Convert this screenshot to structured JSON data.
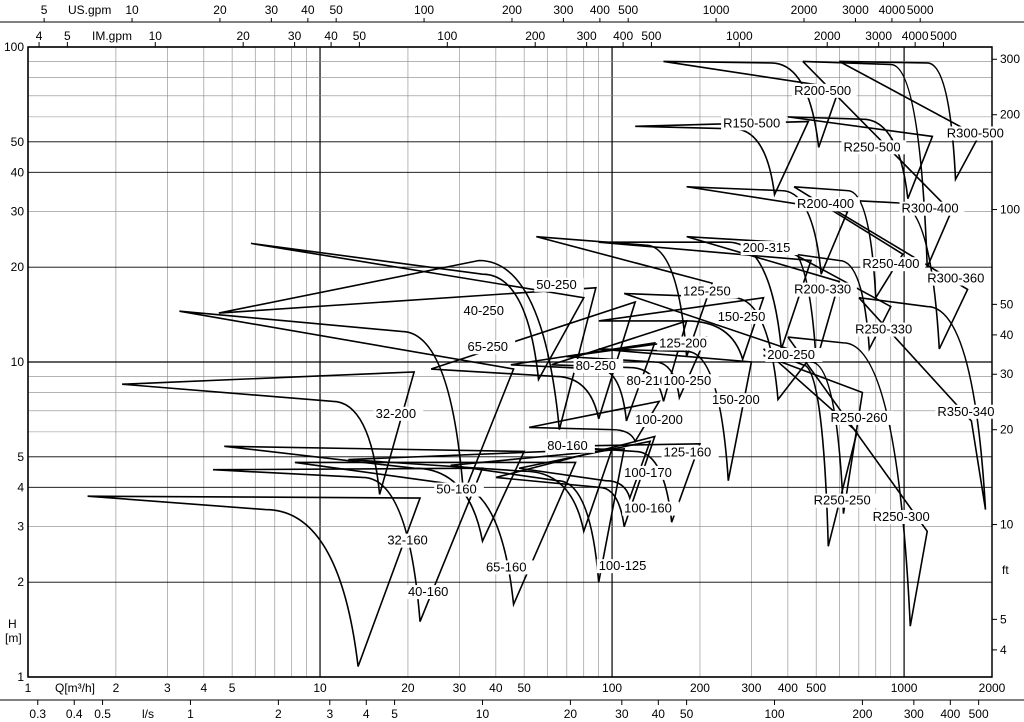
{
  "chart_data": {
    "type": "line",
    "title": "",
    "xlabel": "Q[m³/h]",
    "ylabel": "H\n[m]",
    "x_scale": "log",
    "y_scale": "log",
    "xlim": [
      1,
      2000
    ],
    "ylim": [
      1,
      100
    ],
    "grid": true,
    "x_ticks": [
      {
        "v": 1,
        "l": "1"
      },
      {
        "v": 2,
        "l": "2"
      },
      {
        "v": 3,
        "l": "3"
      },
      {
        "v": 4,
        "l": "4"
      },
      {
        "v": 5,
        "l": "5"
      },
      {
        "v": 10,
        "l": "10"
      },
      {
        "v": 20,
        "l": "20"
      },
      {
        "v": 30,
        "l": "30"
      },
      {
        "v": 40,
        "l": "40"
      },
      {
        "v": 50,
        "l": "50"
      },
      {
        "v": 100,
        "l": "100"
      },
      {
        "v": 200,
        "l": "200"
      },
      {
        "v": 300,
        "l": "300"
      },
      {
        "v": 400,
        "l": "400"
      },
      {
        "v": 500,
        "l": "500"
      },
      {
        "v": 1000,
        "l": "1000"
      },
      {
        "v": 2000,
        "l": "2000"
      }
    ],
    "y_ticks": [
      {
        "v": 1,
        "l": "1"
      },
      {
        "v": 2,
        "l": "2"
      },
      {
        "v": 3,
        "l": "3"
      },
      {
        "v": 4,
        "l": "4"
      },
      {
        "v": 5,
        "l": "5"
      },
      {
        "v": 10,
        "l": "10"
      },
      {
        "v": 20,
        "l": "20"
      },
      {
        "v": 30,
        "l": "30"
      },
      {
        "v": 40,
        "l": "40"
      },
      {
        "v": 50,
        "l": "50"
      },
      {
        "v": 100,
        "l": "100"
      }
    ],
    "secondary_axes": {
      "top_us": {
        "label": "US.gpm",
        "ticks": [
          5,
          10,
          20,
          30,
          40,
          50,
          100,
          200,
          300,
          400,
          500,
          1000,
          2000,
          3000,
          4000,
          5000
        ]
      },
      "top_im": {
        "label": "IM.gpm",
        "ticks": [
          4,
          5,
          10,
          20,
          30,
          40,
          50,
          100,
          200,
          300,
          400,
          500,
          1000,
          2000,
          3000,
          4000,
          5000
        ]
      },
      "bottom_ls": {
        "label": "l/s",
        "ticks": [
          0.3,
          0.4,
          0.5,
          1,
          2,
          3,
          4,
          5,
          10,
          20,
          30,
          40,
          50,
          100,
          200,
          300,
          400,
          500
        ]
      },
      "right_ft": {
        "label": "ft",
        "ticks": [
          4,
          5,
          10,
          20,
          30,
          40,
          50,
          100,
          200,
          300
        ]
      }
    },
    "series": [
      {
        "name": "32-160",
        "label_at": [
          17,
          2.65
        ],
        "points": [
          [
            1.6,
            3.75
          ],
          [
            6.5,
            3.4
          ],
          [
            13.5,
            1.08
          ],
          [
            22,
            3.7
          ]
        ]
      },
      {
        "name": "32-200",
        "label_at": [
          15.5,
          6.7
        ],
        "points": [
          [
            2.1,
            8.5
          ],
          [
            11,
            7.5
          ],
          [
            16,
            3.8
          ],
          [
            21,
            9.3
          ]
        ]
      },
      {
        "name": "40-160",
        "label_at": [
          20,
          1.82
        ],
        "points": [
          [
            4.3,
            4.55
          ],
          [
            14,
            4.3
          ],
          [
            22,
            1.5
          ],
          [
            36,
            4.6
          ]
        ]
      },
      {
        "name": "40-250",
        "label_at": [
          31,
          14.2
        ],
        "points": [
          [
            3.3,
            14.5
          ],
          [
            19,
            12.5
          ],
          [
            31,
            3.8
          ],
          [
            46,
            9.5
          ]
        ]
      },
      {
        "name": "50-160",
        "label_at": [
          25,
          3.85
        ],
        "points": [
          [
            4.7,
            5.4
          ],
          [
            21,
            4.6
          ],
          [
            36,
            2.7
          ],
          [
            50,
            5.2
          ]
        ]
      },
      {
        "name": "65-160",
        "label_at": [
          37,
          2.18
        ],
        "points": [
          [
            8.2,
            4.8
          ],
          [
            28,
            4.1
          ],
          [
            46,
            1.7
          ],
          [
            75,
            4.8
          ]
        ]
      },
      {
        "name": "65-250",
        "label_at": [
          32,
          10.9
        ],
        "points": [
          [
            5.8,
            23.8
          ],
          [
            36,
            19
          ],
          [
            56,
            8.8
          ],
          [
            80,
            16
          ]
        ]
      },
      {
        "name": "50-250",
        "label_at": [
          55,
          17.2
        ],
        "points": [
          [
            4.5,
            14.3
          ],
          [
            35,
            21
          ],
          [
            66,
            6.1
          ],
          [
            88,
            17.2
          ]
        ]
      },
      {
        "name": "80-160",
        "label_at": [
          60,
          5.3
        ],
        "points": [
          [
            12.5,
            4.9
          ],
          [
            50,
            4.5
          ],
          [
            80,
            2.9
          ],
          [
            100,
            5.3
          ]
        ]
      },
      {
        "name": "80-250",
        "label_at": [
          75,
          9.5
        ],
        "points": [
          [
            24,
            9.5
          ],
          [
            64,
            9
          ],
          [
            90,
            6.6
          ],
          [
            120,
            15.5
          ]
        ]
      },
      {
        "name": "100-125",
        "label_at": [
          90,
          2.2
        ],
        "points": [
          [
            28,
            4.7
          ],
          [
            65,
            4.2
          ],
          [
            90,
            2.0
          ],
          [
            110,
            5.3
          ]
        ]
      },
      {
        "name": "100-160",
        "label_at": [
          110,
          3.35
        ],
        "points": [
          [
            40,
            4.3
          ],
          [
            90,
            4.0
          ],
          [
            110,
            3.0
          ],
          [
            140,
            5.8
          ]
        ]
      },
      {
        "name": "100-170",
        "label_at": [
          110,
          4.35
        ],
        "points": [
          [
            48,
            4.6
          ],
          [
            95,
            4.2
          ],
          [
            115,
            3.7
          ],
          [
            135,
            5.6
          ]
        ]
      },
      {
        "name": "100-200",
        "label_at": [
          120,
          6.4
        ],
        "points": [
          [
            52,
            6.2
          ],
          [
            100,
            6.1
          ],
          [
            120,
            5.6
          ],
          [
            145,
            7.5
          ]
        ]
      },
      {
        "name": "80-210",
        "label_at": [
          112,
          8.5
        ],
        "points": [
          [
            45,
            9.8
          ],
          [
            90,
            9.5
          ],
          [
            112,
            6.5
          ],
          [
            140,
            11.5
          ]
        ]
      },
      {
        "name": "100-250",
        "label_at": [
          150,
          8.5
        ],
        "points": [
          [
            62,
            9.8
          ],
          [
            115,
            9.6
          ],
          [
            150,
            7.5
          ],
          [
            180,
            13.5
          ]
        ]
      },
      {
        "name": "125-160",
        "label_at": [
          150,
          5.05
        ],
        "points": [
          [
            65,
            5.4
          ],
          [
            120,
            5.2
          ],
          [
            160,
            3.1
          ],
          [
            200,
            5.5
          ]
        ]
      },
      {
        "name": "125-200",
        "label_at": [
          145,
          11.2
        ],
        "points": [
          [
            70,
            10.4
          ],
          [
            140,
            10
          ],
          [
            170,
            7.7
          ],
          [
            210,
            12
          ]
        ]
      },
      {
        "name": "125-250",
        "label_at": [
          175,
          16.4
        ],
        "points": [
          [
            55,
            25
          ],
          [
            130,
            23.5
          ],
          [
            180,
            10.4
          ],
          [
            220,
            17.8
          ]
        ]
      },
      {
        "name": "150-200",
        "label_at": [
          220,
          7.4
        ],
        "points": [
          [
            90,
            11
          ],
          [
            180,
            10.8
          ],
          [
            250,
            4.2
          ],
          [
            300,
            10
          ]
        ]
      },
      {
        "name": "150-250",
        "label_at": [
          230,
          13.6
        ],
        "points": [
          [
            90,
            13.5
          ],
          [
            180,
            13.5
          ],
          [
            280,
            10.2
          ],
          [
            330,
            16
          ]
        ]
      },
      {
        "name": "200-250",
        "label_at": [
          340,
          10.3
        ],
        "points": [
          [
            110,
            16.5
          ],
          [
            260,
            16
          ],
          [
            370,
            7.6
          ],
          [
            480,
            10.4
          ]
        ]
      },
      {
        "name": "200-315",
        "label_at": [
          280,
          22.5
        ],
        "points": [
          [
            90,
            24
          ],
          [
            250,
            24
          ],
          [
            380,
            11
          ],
          [
            480,
            21
          ]
        ]
      },
      {
        "name": "R150-500",
        "label_at": [
          240,
          56
        ],
        "points": [
          [
            120,
            56
          ],
          [
            260,
            55
          ],
          [
            360,
            34
          ],
          [
            470,
            58
          ]
        ]
      },
      {
        "name": "R200-500",
        "label_at": [
          420,
          71
        ],
        "points": [
          [
            150,
            90
          ],
          [
            350,
            89
          ],
          [
            510,
            48
          ],
          [
            600,
            74
          ]
        ]
      },
      {
        "name": "R200-400",
        "label_at": [
          430,
          31
        ],
        "points": [
          [
            180,
            36
          ],
          [
            380,
            35
          ],
          [
            520,
            19
          ],
          [
            640,
            30
          ]
        ]
      },
      {
        "name": "R200-330",
        "label_at": [
          420,
          16.6
        ],
        "points": [
          [
            180,
            25
          ],
          [
            380,
            24
          ],
          [
            500,
            10
          ],
          [
            600,
            18
          ]
        ]
      },
      {
        "name": "R250-250",
        "label_at": [
          490,
          3.55
        ],
        "points": [
          [
            330,
            11
          ],
          [
            450,
            9.8
          ],
          [
            550,
            2.6
          ],
          [
            690,
            6
          ]
        ]
      },
      {
        "name": "R250-260",
        "label_at": [
          560,
          6.5
        ],
        "points": [
          [
            330,
            10.5
          ],
          [
            480,
            10
          ],
          [
            620,
            3.3
          ],
          [
            720,
            8
          ]
        ]
      },
      {
        "name": "R250-300",
        "label_at": [
          780,
          3.15
        ],
        "points": [
          [
            400,
            12
          ],
          [
            620,
            11.5
          ],
          [
            1050,
            1.45
          ],
          [
            1200,
            2.9
          ]
        ]
      },
      {
        "name": "R250-330",
        "label_at": [
          680,
          12.4
        ],
        "points": [
          [
            420,
            22
          ],
          [
            600,
            21
          ],
          [
            760,
            11
          ],
          [
            900,
            15
          ]
        ]
      },
      {
        "name": "R250-400",
        "label_at": [
          720,
          20
        ],
        "points": [
          [
            420,
            36
          ],
          [
            640,
            35
          ],
          [
            800,
            16
          ],
          [
            990,
            22
          ]
        ]
      },
      {
        "name": "R250-500",
        "label_at": [
          620,
          47
        ],
        "points": [
          [
            400,
            60
          ],
          [
            720,
            59
          ],
          [
            1030,
            33
          ],
          [
            1250,
            52
          ]
        ]
      },
      {
        "name": "R300-400",
        "label_at": [
          980,
          30
        ],
        "points": [
          [
            450,
            90
          ],
          [
            900,
            88
          ],
          [
            1200,
            20
          ],
          [
            1450,
            30
          ]
        ]
      },
      {
        "name": "R300-360",
        "label_at": [
          1200,
          18
        ],
        "points": [
          [
            500,
            33
          ],
          [
            950,
            32
          ],
          [
            1320,
            11
          ],
          [
            1650,
            17
          ]
        ]
      },
      {
        "name": "R300-500",
        "label_at": [
          1400,
          52
        ],
        "points": [
          [
            600,
            90
          ],
          [
            1200,
            89
          ],
          [
            1500,
            38
          ],
          [
            1800,
            52
          ]
        ]
      },
      {
        "name": "R350-340",
        "label_at": [
          1300,
          6.8
        ],
        "points": [
          [
            700,
            16
          ],
          [
            1200,
            15
          ],
          [
            1900,
            3.4
          ],
          [
            1700,
            6.5
          ]
        ]
      }
    ]
  }
}
